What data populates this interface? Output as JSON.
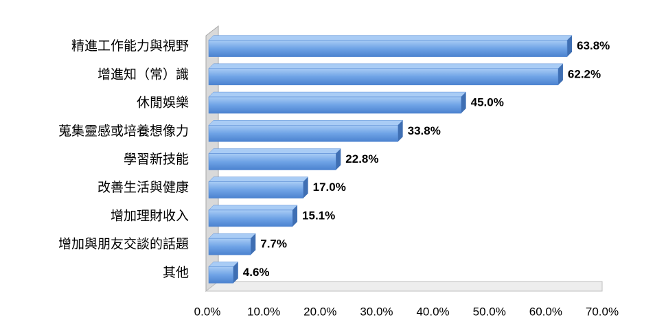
{
  "chart_data": {
    "type": "bar",
    "orientation": "horizontal",
    "color": "#6fa3e6",
    "categories": [
      "精進工作能力與視野",
      "增進知（常）識",
      "休閒娛樂",
      "蒐集靈感或培養想像力",
      "學習新技能",
      "改善生活與健康",
      "增加理財收入",
      "增加與朋友交談的話題",
      "其他"
    ],
    "values": [
      63.8,
      62.2,
      45.0,
      33.8,
      22.8,
      17.0,
      15.1,
      7.7,
      4.6
    ],
    "value_labels": [
      "63.8%",
      "62.2%",
      "45.0%",
      "33.8%",
      "22.8%",
      "17.0%",
      "15.1%",
      "7.7%",
      "4.6%"
    ],
    "xlim": [
      0,
      70
    ],
    "xticks": [
      {
        "value": 0,
        "label": "0.0%"
      },
      {
        "value": 10,
        "label": "10.0%"
      },
      {
        "value": 20,
        "label": "20.0%"
      },
      {
        "value": 30,
        "label": "30.0%"
      },
      {
        "value": 40,
        "label": "40.0%"
      },
      {
        "value": 50,
        "label": "50.0%"
      },
      {
        "value": 60,
        "label": "60.0%"
      },
      {
        "value": 70,
        "label": "70.0%"
      }
    ]
  }
}
